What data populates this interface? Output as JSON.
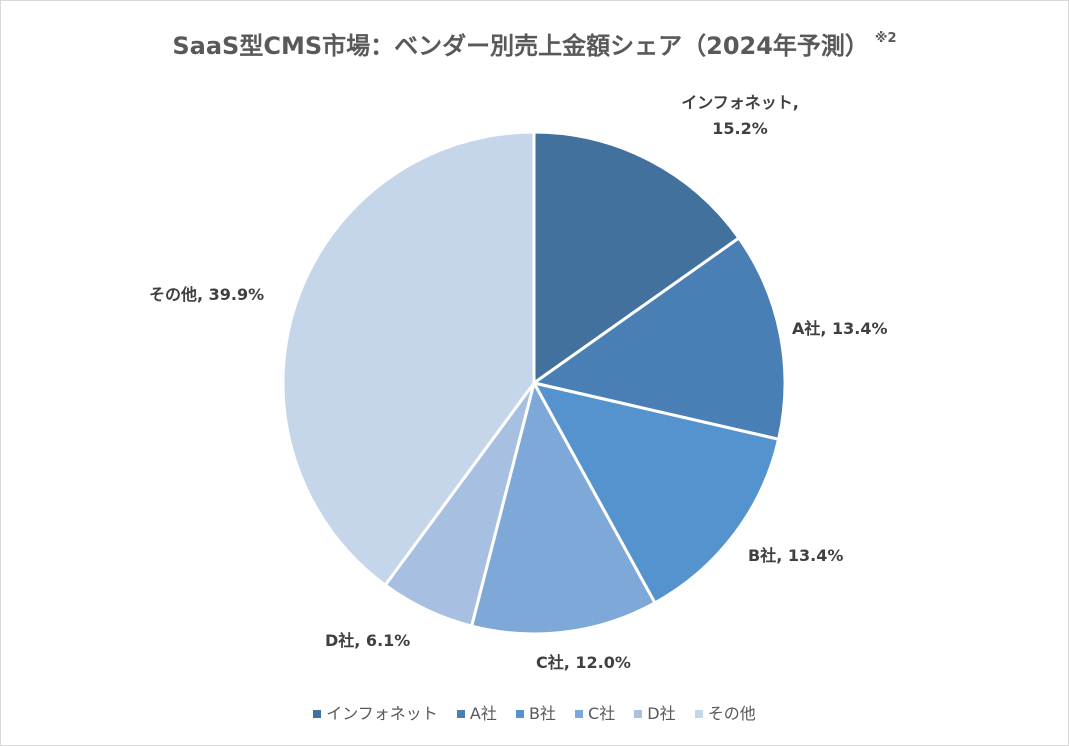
{
  "chart_data": {
    "type": "pie",
    "title": "SaaS型CMS市場：ベンダー別売上金額シェア（2024年予測）",
    "title_note": "※2",
    "categories": [
      "インフォネット",
      "A社",
      "B社",
      "C社",
      "D社",
      "その他"
    ],
    "values": [
      15.2,
      13.4,
      13.4,
      12.0,
      6.1,
      39.9
    ],
    "unit": "%",
    "data_labels": [
      "インフォネット,",
      "A社, 13.4%",
      "B社, 13.4%",
      "C社, 12.0%",
      "D社, 6.1%",
      "その他, 39.9%"
    ],
    "data_label_second_line": "15.2%",
    "colors": [
      "#41719c",
      "#4a7fb5",
      "#5593ce",
      "#7da8d8",
      "#a7c0e2",
      "#c5d5ea"
    ],
    "legend_position": "bottom",
    "start_angle": "12 o'clock",
    "direction": "clockwise"
  }
}
